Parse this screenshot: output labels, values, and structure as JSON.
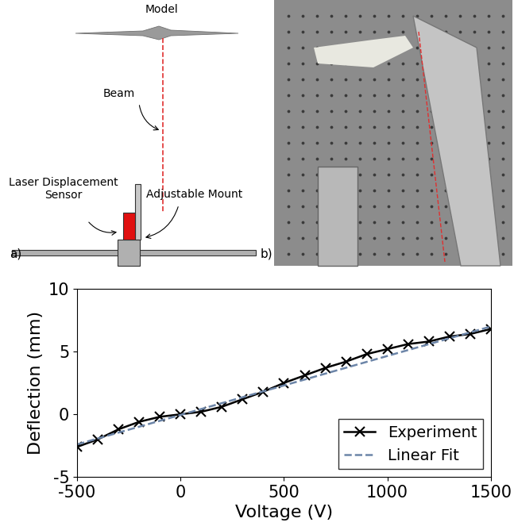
{
  "chart_data": {
    "type": "line",
    "x_label": "Voltage (V)",
    "y_label": "Deflection (mm)",
    "series": [
      {
        "name": "Experiment",
        "color": "#000000",
        "marker": "x",
        "line_style": "solid",
        "x": [
          -500,
          -400,
          -300,
          -200,
          -100,
          0,
          100,
          200,
          300,
          400,
          500,
          600,
          700,
          800,
          900,
          1000,
          1100,
          1200,
          1300,
          1400,
          1500
        ],
        "values": [
          -2.6,
          -2.0,
          -1.2,
          -0.6,
          -0.2,
          0.0,
          0.2,
          0.6,
          1.2,
          1.8,
          2.5,
          3.1,
          3.7,
          4.2,
          4.8,
          5.2,
          5.6,
          5.8,
          6.2,
          6.4,
          6.8
        ]
      },
      {
        "name": "Linear Fit",
        "color": "#6c85a8",
        "line_style": "dashed",
        "x": [
          -500,
          1500
        ],
        "values": [
          -2.4,
          7.0
        ]
      }
    ],
    "xlim": [
      -500,
      1500
    ],
    "xticks": [
      -500,
      0,
      500,
      1000,
      1500
    ],
    "ylim": [
      -5,
      10
    ],
    "yticks": [
      -5,
      0,
      5,
      10
    ],
    "legend": "lower right",
    "grid": false
  },
  "diagram": {
    "panel_label": "a)",
    "model": "Model",
    "beam": "Beam",
    "sensor": "Laser Displacement\nSensor",
    "mount": "Adjustable Mount"
  },
  "photo": {
    "panel_label": "b)"
  }
}
